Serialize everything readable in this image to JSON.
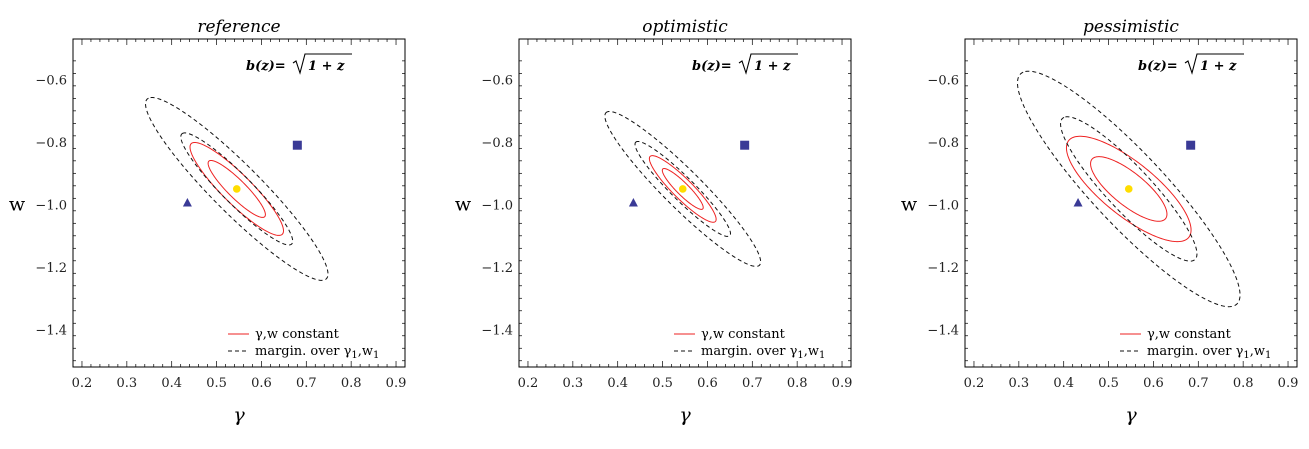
{
  "chart_data": [
    {
      "type": "scatter",
      "title": "reference",
      "xlabel": "γ",
      "ylabel": "w",
      "xlim": [
        0.18,
        0.92
      ],
      "ylim": [
        -1.52,
        -0.47
      ],
      "xticks": [
        0.2,
        0.3,
        0.4,
        0.5,
        0.6,
        0.7,
        0.8,
        0.9
      ],
      "xtick_labels": [
        "0.2",
        "0.3",
        "0.4",
        "0.5",
        "0.6",
        "0.7",
        "0.8",
        "0.9"
      ],
      "yticks": [
        -0.6,
        -0.8,
        -1.0,
        -1.2,
        -1.4
      ],
      "ytick_labels": [
        "−0.6",
        "−0.8",
        "−1.0",
        "−1.2",
        "−1.4"
      ],
      "annotation": {
        "prefix": "b(z)=",
        "radicand": "1 + z"
      },
      "legend": {
        "location": "bottom-right",
        "entries": [
          {
            "style": "solid",
            "color": "#ee2222",
            "text": "γ,w constant"
          },
          {
            "style": "dashed",
            "color": "#111111",
            "text_main": "margin. over γ",
            "sub1": "1",
            "text_mid": ",w",
            "sub2": "1"
          }
        ]
      },
      "fiducial": {
        "x": 0.545,
        "y": -0.95,
        "color": "#ffdd00"
      },
      "markers": [
        {
          "shape": "square",
          "x": 0.68,
          "y": -0.81,
          "color": "#3a3a96"
        },
        {
          "shape": "triangle",
          "x": 0.435,
          "y": -0.995,
          "color": "#3a3a96"
        }
      ],
      "ellipses": [
        {
          "style": "solid",
          "color": "#ee2222",
          "cx": 0.545,
          "cy": -0.95,
          "sx": 0.042,
          "sy": 0.06,
          "rho": -0.9,
          "k": 1.52
        },
        {
          "style": "solid",
          "color": "#ee2222",
          "cx": 0.545,
          "cy": -0.95,
          "sx": 0.042,
          "sy": 0.06,
          "rho": -0.9,
          "k": 2.48
        },
        {
          "style": "dashed",
          "color": "#111111",
          "cx": 0.545,
          "cy": -0.95,
          "sx": 0.082,
          "sy": 0.118,
          "rho": -0.93,
          "k": 1.52
        },
        {
          "style": "dashed",
          "color": "#111111",
          "cx": 0.545,
          "cy": -0.95,
          "sx": 0.082,
          "sy": 0.118,
          "rho": -0.93,
          "k": 2.48
        }
      ]
    },
    {
      "type": "scatter",
      "title": "optimistic",
      "xlabel": "γ",
      "ylabel": "w",
      "xlim": [
        0.18,
        0.92
      ],
      "ylim": [
        -1.52,
        -0.47
      ],
      "xticks": [
        0.2,
        0.3,
        0.4,
        0.5,
        0.6,
        0.7,
        0.8,
        0.9
      ],
      "xtick_labels": [
        "0.2",
        "0.3",
        "0.4",
        "0.5",
        "0.6",
        "0.7",
        "0.8",
        "0.9"
      ],
      "yticks": [
        -0.6,
        -0.8,
        -1.0,
        -1.2,
        -1.4
      ],
      "ytick_labels": [
        "−0.6",
        "−0.8",
        "−1.0",
        "−1.2",
        "−1.4"
      ],
      "annotation": {
        "prefix": "b(z)=",
        "radicand": "1 + z"
      },
      "legend": {
        "location": "bottom-right",
        "entries": [
          {
            "style": "solid",
            "color": "#ee2222",
            "text": "γ,w constant"
          },
          {
            "style": "dashed",
            "color": "#111111",
            "text_main": "margin. over γ",
            "sub1": "1",
            "text_mid": ",w",
            "sub2": "1"
          }
        ]
      },
      "fiducial": {
        "x": 0.545,
        "y": -0.95,
        "color": "#ffdd00"
      },
      "markers": [
        {
          "shape": "square",
          "x": 0.683,
          "y": -0.81,
          "color": "#3a3a96"
        },
        {
          "shape": "triangle",
          "x": 0.435,
          "y": -0.995,
          "color": "#3a3a96"
        }
      ],
      "ellipses": [
        {
          "style": "solid",
          "color": "#ee2222",
          "cx": 0.545,
          "cy": -0.95,
          "sx": 0.03,
          "sy": 0.043,
          "rho": -0.91,
          "k": 1.52
        },
        {
          "style": "solid",
          "color": "#ee2222",
          "cx": 0.545,
          "cy": -0.95,
          "sx": 0.03,
          "sy": 0.043,
          "rho": -0.91,
          "k": 2.48
        },
        {
          "style": "dashed",
          "color": "#111111",
          "cx": 0.545,
          "cy": -0.95,
          "sx": 0.07,
          "sy": 0.1,
          "rho": -0.94,
          "k": 1.52
        },
        {
          "style": "dashed",
          "color": "#111111",
          "cx": 0.545,
          "cy": -0.95,
          "sx": 0.07,
          "sy": 0.1,
          "rho": -0.94,
          "k": 2.48
        }
      ]
    },
    {
      "type": "scatter",
      "title": "pessimistic",
      "xlabel": "γ",
      "ylabel": "w",
      "xlim": [
        0.18,
        0.92
      ],
      "ylim": [
        -1.52,
        -0.47
      ],
      "xticks": [
        0.2,
        0.3,
        0.4,
        0.5,
        0.6,
        0.7,
        0.8,
        0.9
      ],
      "xtick_labels": [
        "0.2",
        "0.3",
        "0.4",
        "0.5",
        "0.6",
        "0.7",
        "0.8",
        "0.9"
      ],
      "yticks": [
        -0.6,
        -0.8,
        -1.0,
        -1.2,
        -1.4
      ],
      "ytick_labels": [
        "−0.6",
        "−0.8",
        "−1.0",
        "−1.2",
        "−1.4"
      ],
      "annotation": {
        "prefix": "b(z)=",
        "radicand": "1 + z"
      },
      "legend": {
        "location": "bottom-right",
        "entries": [
          {
            "style": "solid",
            "color": "#ee2222",
            "text": "γ,w constant"
          },
          {
            "style": "dashed",
            "color": "#111111",
            "text_main": "margin. over γ",
            "sub1": "1",
            "text_mid": ",w",
            "sub2": "1"
          }
        ]
      },
      "fiducial": {
        "x": 0.545,
        "y": -0.95,
        "color": "#ffdd00"
      },
      "markers": [
        {
          "shape": "square",
          "x": 0.683,
          "y": -0.81,
          "color": "#3a3a96"
        },
        {
          "shape": "triangle",
          "x": 0.432,
          "y": -0.995,
          "color": "#3a3a96"
        }
      ],
      "ellipses": [
        {
          "style": "solid",
          "color": "#ee2222",
          "cx": 0.545,
          "cy": -0.95,
          "sx": 0.056,
          "sy": 0.068,
          "rho": -0.78,
          "k": 1.52
        },
        {
          "style": "solid",
          "color": "#ee2222",
          "cx": 0.545,
          "cy": -0.95,
          "sx": 0.056,
          "sy": 0.068,
          "rho": -0.78,
          "k": 2.48
        },
        {
          "style": "dashed",
          "color": "#111111",
          "cx": 0.545,
          "cy": -0.95,
          "sx": 0.1,
          "sy": 0.152,
          "rho": -0.9,
          "k": 1.52
        },
        {
          "style": "dashed",
          "color": "#111111",
          "cx": 0.545,
          "cy": -0.95,
          "sx": 0.1,
          "sy": 0.152,
          "rho": -0.9,
          "k": 2.48
        }
      ]
    }
  ]
}
